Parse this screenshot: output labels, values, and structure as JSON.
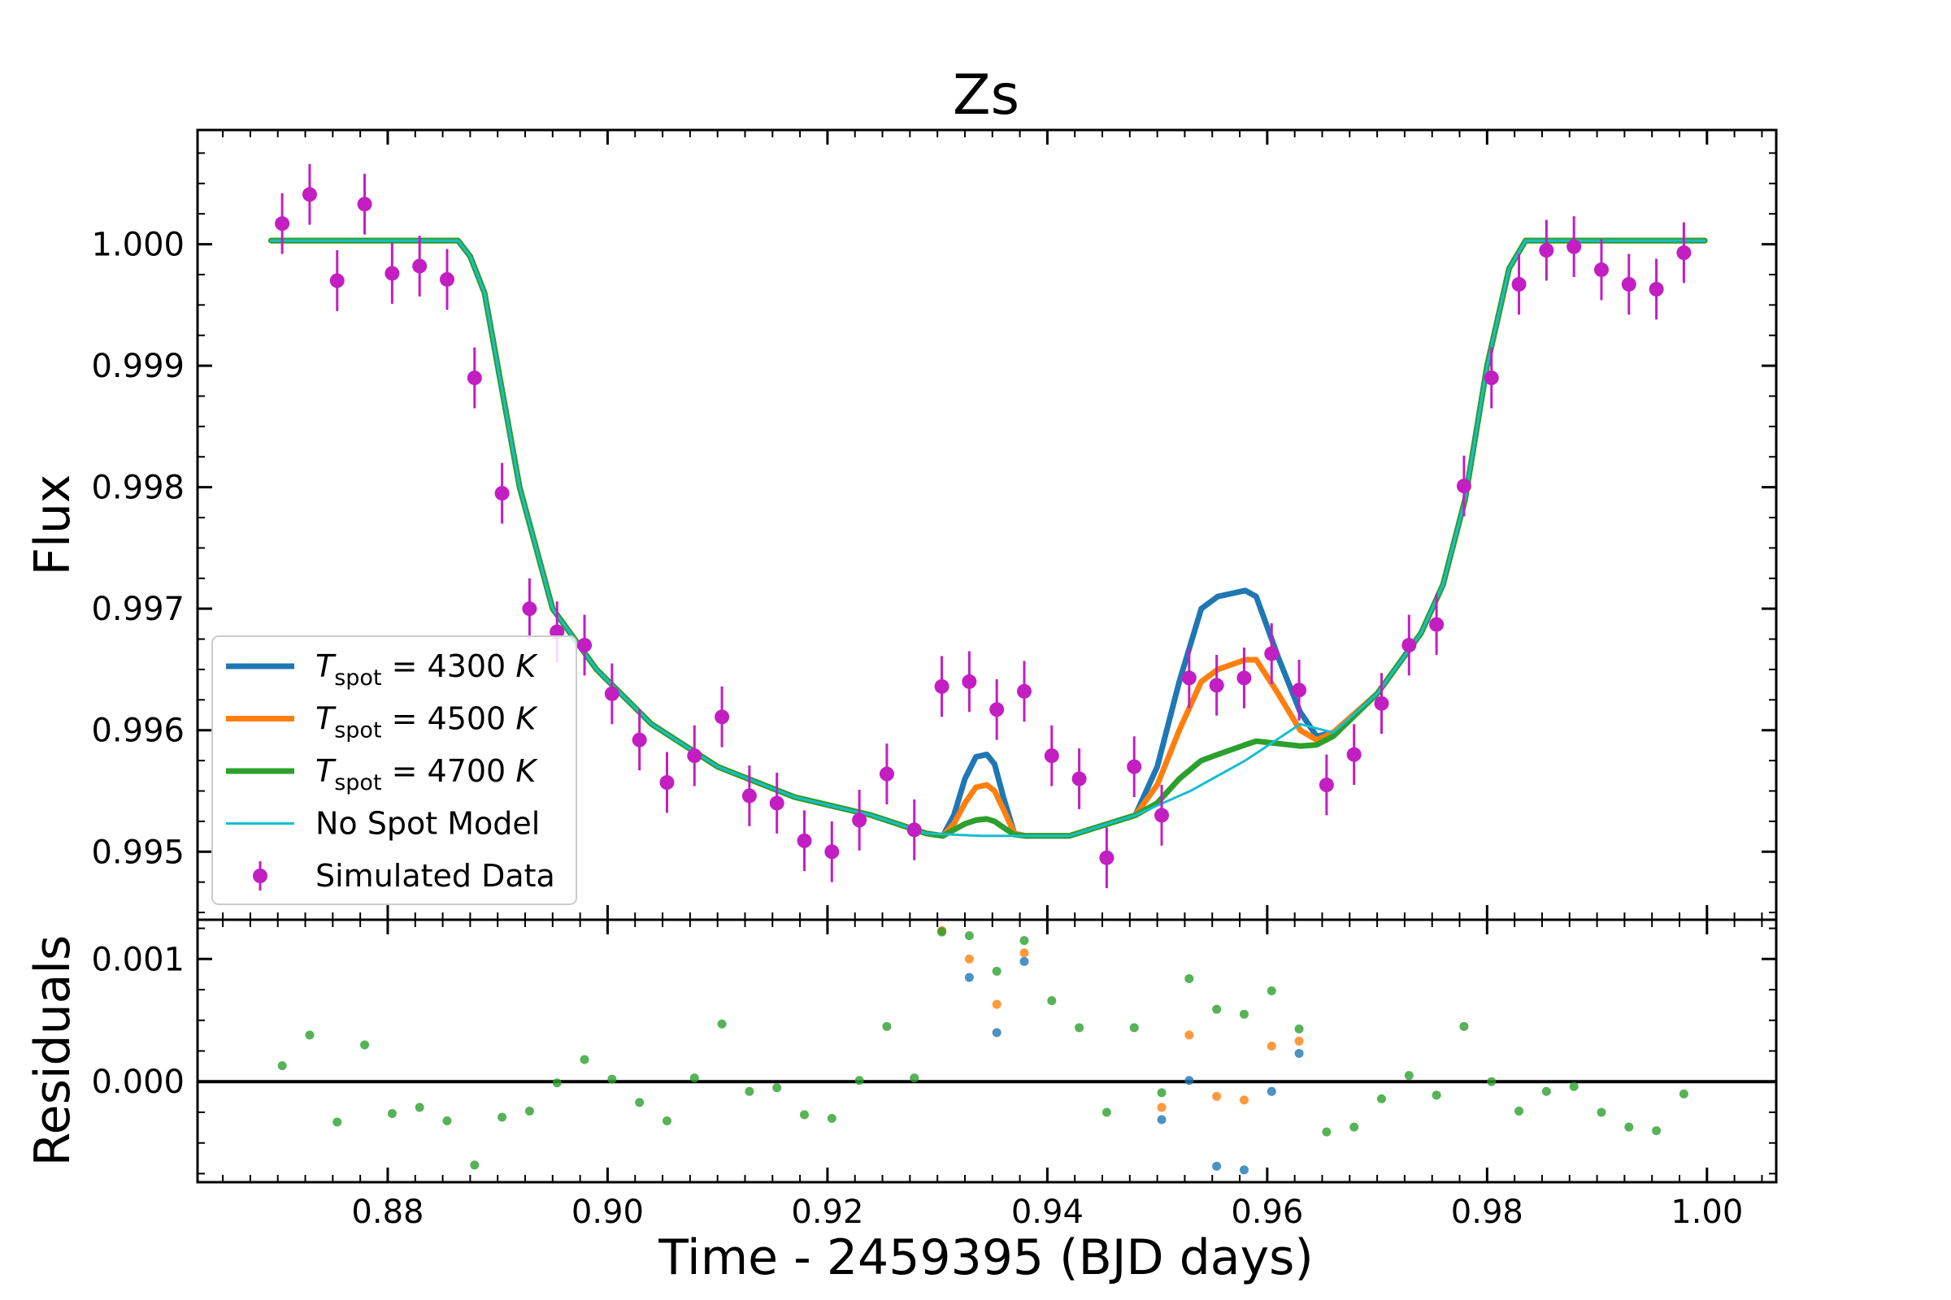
{
  "chart_data": [
    {
      "panel": "main",
      "type": "line",
      "title": "Zs",
      "xlabel": "",
      "ylabel": "Flux",
      "xlim": [
        0.8627,
        1.0063
      ],
      "ylim": [
        0.99444,
        1.00094
      ],
      "xticks": [
        0.88,
        0.9,
        0.92,
        0.94,
        0.96,
        0.98,
        1.0
      ],
      "yticks": [
        0.995,
        0.996,
        0.997,
        0.998,
        0.999,
        1.0
      ],
      "ytick_labels": [
        "0.995",
        "0.996",
        "0.997",
        "0.998",
        "0.999",
        "1.000"
      ],
      "grid": false,
      "legend_position": "lower-left",
      "series": [
        {
          "name": "T_spot = 4300 K",
          "legend_main": "T",
          "legend_sub": "spot",
          "legend_rest": " = 4300 ",
          "legend_unit": "K",
          "color": "#1f77b4",
          "kind": "line",
          "width": 7,
          "x": [
            0.8694,
            0.8864,
            0.8875,
            0.8888,
            0.8902,
            0.892,
            0.895,
            0.899,
            0.904,
            0.91,
            0.917,
            0.924,
            0.929,
            0.9305,
            0.9315,
            0.9325,
            0.9335,
            0.9345,
            0.9352,
            0.936,
            0.937,
            0.938,
            0.939,
            0.942,
            0.948,
            0.95,
            0.952,
            0.954,
            0.9555,
            0.958,
            0.959,
            0.961,
            0.963,
            0.9645,
            0.966,
            0.97,
            0.974,
            0.976,
            0.978,
            0.98,
            0.982,
            0.9835,
            0.9998
          ],
          "y": [
            1.00003,
            1.00003,
            0.9999,
            0.9996,
            0.9989,
            0.998,
            0.997,
            0.9965,
            0.99605,
            0.9957,
            0.99545,
            0.9953,
            0.99515,
            0.99513,
            0.9953,
            0.9956,
            0.99578,
            0.9958,
            0.99572,
            0.99545,
            0.99515,
            0.99513,
            0.99513,
            0.99513,
            0.9953,
            0.9957,
            0.9964,
            0.997,
            0.9971,
            0.99715,
            0.9971,
            0.9966,
            0.99615,
            0.99595,
            0.99598,
            0.9963,
            0.9968,
            0.9972,
            0.9979,
            0.999,
            0.9998,
            1.00003,
            1.00003
          ]
        },
        {
          "name": "T_spot = 4500 K",
          "legend_main": "T",
          "legend_sub": "spot",
          "legend_rest": " = 4500 ",
          "legend_unit": "K",
          "color": "#ff7f0e",
          "kind": "line",
          "width": 7,
          "x": [
            0.8694,
            0.8864,
            0.8875,
            0.8888,
            0.8902,
            0.892,
            0.895,
            0.899,
            0.904,
            0.91,
            0.917,
            0.924,
            0.929,
            0.9305,
            0.9315,
            0.9325,
            0.9335,
            0.9345,
            0.9352,
            0.936,
            0.937,
            0.938,
            0.939,
            0.942,
            0.948,
            0.95,
            0.952,
            0.954,
            0.9555,
            0.958,
            0.959,
            0.961,
            0.963,
            0.9645,
            0.966,
            0.97,
            0.974,
            0.976,
            0.978,
            0.98,
            0.982,
            0.9835,
            0.9998
          ],
          "y": [
            1.00003,
            1.00003,
            0.9999,
            0.9996,
            0.9989,
            0.998,
            0.997,
            0.9965,
            0.99605,
            0.9957,
            0.99545,
            0.9953,
            0.99515,
            0.99513,
            0.99523,
            0.9954,
            0.99553,
            0.99555,
            0.9955,
            0.99535,
            0.99515,
            0.99513,
            0.99513,
            0.99513,
            0.9953,
            0.99555,
            0.996,
            0.9964,
            0.9965,
            0.99658,
            0.99658,
            0.9963,
            0.996,
            0.99592,
            0.99598,
            0.9963,
            0.9968,
            0.9972,
            0.9979,
            0.999,
            0.9998,
            1.00003,
            1.00003
          ]
        },
        {
          "name": "T_spot = 4700 K",
          "legend_main": "T",
          "legend_sub": "spot",
          "legend_rest": " = 4700 ",
          "legend_unit": "K",
          "color": "#2ca02c",
          "kind": "line",
          "width": 7,
          "x": [
            0.8694,
            0.8864,
            0.8875,
            0.8888,
            0.8902,
            0.892,
            0.895,
            0.899,
            0.904,
            0.91,
            0.917,
            0.924,
            0.929,
            0.9305,
            0.9315,
            0.9325,
            0.9335,
            0.9345,
            0.9352,
            0.936,
            0.937,
            0.938,
            0.939,
            0.942,
            0.948,
            0.95,
            0.952,
            0.954,
            0.9555,
            0.958,
            0.959,
            0.961,
            0.963,
            0.9645,
            0.966,
            0.97,
            0.974,
            0.976,
            0.978,
            0.98,
            0.982,
            0.9835,
            0.9998
          ],
          "y": [
            1.00003,
            1.00003,
            0.9999,
            0.9996,
            0.9989,
            0.998,
            0.997,
            0.9965,
            0.99605,
            0.9957,
            0.99545,
            0.9953,
            0.99515,
            0.99513,
            0.99518,
            0.99523,
            0.99526,
            0.99527,
            0.99525,
            0.9952,
            0.99514,
            0.99513,
            0.99513,
            0.99513,
            0.9953,
            0.9954,
            0.9956,
            0.99575,
            0.9958,
            0.99588,
            0.99591,
            0.99589,
            0.99587,
            0.99588,
            0.99595,
            0.9963,
            0.9968,
            0.9972,
            0.9979,
            0.999,
            0.9998,
            1.00003,
            1.00003
          ]
        },
        {
          "name": "No Spot Model",
          "legend_main": "No Spot Model",
          "color": "#17becf",
          "kind": "line",
          "width": 3,
          "x": [
            0.8694,
            0.8864,
            0.8875,
            0.8888,
            0.8902,
            0.892,
            0.895,
            0.899,
            0.904,
            0.91,
            0.917,
            0.924,
            0.929,
            0.934,
            0.939,
            0.942,
            0.948,
            0.953,
            0.958,
            0.963,
            0.966,
            0.97,
            0.974,
            0.976,
            0.978,
            0.98,
            0.982,
            0.9835,
            0.9998
          ],
          "y": [
            1.00003,
            1.00003,
            0.9999,
            0.9996,
            0.9989,
            0.998,
            0.997,
            0.9965,
            0.99605,
            0.9957,
            0.99545,
            0.9953,
            0.99515,
            0.99513,
            0.99513,
            0.99513,
            0.9953,
            0.9955,
            0.99575,
            0.99605,
            0.99598,
            0.9963,
            0.9968,
            0.9972,
            0.9979,
            0.999,
            0.9998,
            1.00003,
            1.00003
          ]
        },
        {
          "name": "Simulated Data",
          "legend_main": "Simulated Data",
          "color": "#c21ec2",
          "kind": "errorbar",
          "yerr": 0.00025,
          "x": [
            0.8704,
            0.8729,
            0.8754,
            0.8779,
            0.8804,
            0.8829,
            0.8854,
            0.8879,
            0.8904,
            0.8929,
            0.8954,
            0.8979,
            0.9004,
            0.9029,
            0.9054,
            0.9079,
            0.9104,
            0.9129,
            0.9154,
            0.9179,
            0.9204,
            0.9229,
            0.9254,
            0.9279,
            0.9304,
            0.9329,
            0.9354,
            0.9379,
            0.9404,
            0.9429,
            0.9454,
            0.9479,
            0.9504,
            0.9529,
            0.9554,
            0.9579,
            0.9604,
            0.9629,
            0.9654,
            0.9679,
            0.9704,
            0.9729,
            0.9754,
            0.9779,
            0.9804,
            0.9829,
            0.9854,
            0.9879,
            0.9904,
            0.9929,
            0.9954,
            0.9979
          ],
          "y": [
            1.00017,
            1.00041,
            0.9997,
            1.00033,
            0.99976,
            0.99982,
            0.99971,
            0.9989,
            0.99795,
            0.997,
            0.99681,
            0.9967,
            0.9963,
            0.99592,
            0.99557,
            0.99579,
            0.99611,
            0.99546,
            0.9954,
            0.99509,
            0.995,
            0.99526,
            0.99564,
            0.99518,
            0.99636,
            0.9964,
            0.99617,
            0.99632,
            0.99579,
            0.9956,
            0.99495,
            0.9957,
            0.9953,
            0.99643,
            0.99637,
            0.99643,
            0.99663,
            0.99633,
            0.99555,
            0.9958,
            0.99622,
            0.9967,
            0.99687,
            0.99801,
            0.9989,
            0.99967,
            0.99995,
            0.99998,
            0.99979,
            0.99967,
            0.99963,
            0.99993
          ]
        }
      ]
    },
    {
      "panel": "residuals",
      "type": "scatter",
      "xlabel": "Time - 2459395 (BJD days)",
      "ylabel": "Residuals",
      "xlim": [
        0.8627,
        1.0063
      ],
      "ylim": [
        -0.00082,
        0.00132
      ],
      "xticks": [
        0.88,
        0.9,
        0.92,
        0.94,
        0.96,
        0.98,
        1.0
      ],
      "xtick_labels": [
        "0.88",
        "0.90",
        "0.92",
        "0.94",
        "0.96",
        "0.98",
        "1.00"
      ],
      "yticks": [
        0.0,
        0.001
      ],
      "ytick_labels": [
        "0.000",
        "0.001"
      ],
      "zero_line": true,
      "series": [
        {
          "name": "T_spot = 4300 K",
          "color": "#1f77b4",
          "x": [
            0.9304,
            0.9329,
            0.9354,
            0.9379,
            0.9504,
            0.9529,
            0.9554,
            0.9579,
            0.9604,
            0.9629
          ],
          "y": [
            0.00123,
            0.00085,
            0.0004,
            0.00098,
            -0.00031,
            1e-05,
            -0.00069,
            -0.00072,
            -8e-05,
            0.00023
          ]
        },
        {
          "name": "T_spot = 4500 K",
          "color": "#ff7f0e",
          "x": [
            0.9304,
            0.9329,
            0.9354,
            0.9379,
            0.9504,
            0.9529,
            0.9554,
            0.9579,
            0.9604,
            0.9629
          ],
          "y": [
            0.00123,
            0.001,
            0.00063,
            0.00105,
            -0.00021,
            0.00038,
            -0.00012,
            -0.00015,
            0.00029,
            0.00033
          ]
        },
        {
          "name": "T_spot = 4700 K",
          "color": "#2ca02c",
          "x": [
            0.8704,
            0.8729,
            0.8754,
            0.8779,
            0.8804,
            0.8829,
            0.8854,
            0.8879,
            0.8904,
            0.8929,
            0.8954,
            0.8979,
            0.9004,
            0.9029,
            0.9054,
            0.9079,
            0.9104,
            0.9129,
            0.9154,
            0.9179,
            0.9204,
            0.9229,
            0.9254,
            0.9279,
            0.9304,
            0.9329,
            0.9354,
            0.9379,
            0.9404,
            0.9429,
            0.9454,
            0.9479,
            0.9504,
            0.9529,
            0.9554,
            0.9579,
            0.9604,
            0.9629,
            0.9654,
            0.9679,
            0.9704,
            0.9729,
            0.9754,
            0.9779,
            0.9804,
            0.9829,
            0.9854,
            0.9879,
            0.9904,
            0.9929,
            0.9954,
            0.9979
          ],
          "y": [
            0.00013,
            0.00038,
            -0.00033,
            0.0003,
            -0.00026,
            -0.00021,
            -0.00032,
            -0.00068,
            -0.00029,
            -0.00024,
            -1e-05,
            0.00018,
            2e-05,
            -0.00017,
            -0.00032,
            3e-05,
            0.00047,
            -8e-05,
            -5e-05,
            -0.00027,
            -0.0003,
            1e-05,
            0.00045,
            3e-05,
            0.00122,
            0.00119,
            0.0009,
            0.00115,
            0.00066,
            0.00044,
            -0.00025,
            0.00044,
            -9e-05,
            0.00084,
            0.00059,
            0.00055,
            0.00074,
            0.00043,
            -0.00041,
            -0.00037,
            -0.00014,
            5e-05,
            -0.00011,
            0.00045,
            0.0,
            -0.00024,
            -8e-05,
            -4e-05,
            -0.00025,
            -0.00037,
            -0.0004,
            -0.0001
          ]
        }
      ]
    }
  ]
}
